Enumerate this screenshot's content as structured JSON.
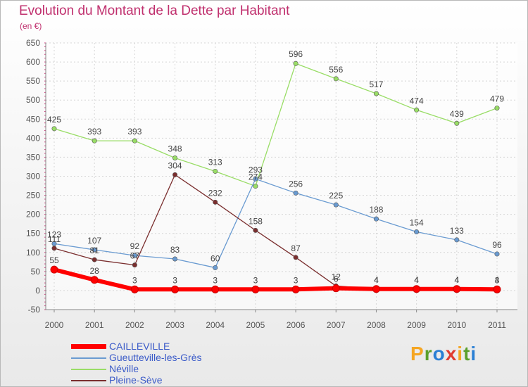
{
  "header": {
    "title": "Evolution du Montant de la Dette par Habitant",
    "unit": "(en €)"
  },
  "brand": {
    "letters": [
      "P",
      "r",
      "o",
      "x",
      "i",
      "t",
      "i"
    ],
    "colors": [
      "#f5a623",
      "#5aa02c",
      "#2a7fd4",
      "#e03c31",
      "#f5a623",
      "#5aa02c",
      "#2a7fd4"
    ]
  },
  "chart_data": {
    "type": "line",
    "title": "Evolution du Montant de la Dette par Habitant",
    "ylabel": "(en €)",
    "xlabel": "",
    "categories": [
      "2000",
      "2001",
      "2002",
      "2003",
      "2004",
      "2005",
      "2006",
      "2007",
      "2008",
      "2009",
      "2010",
      "2011"
    ],
    "ylim": [
      -50,
      650
    ],
    "yticks": [
      -50,
      0,
      50,
      100,
      150,
      200,
      250,
      300,
      350,
      400,
      450,
      500,
      550,
      600,
      650
    ],
    "grid": true,
    "legend_position": "bottom-left",
    "series": [
      {
        "name": "CAILLEVILLE",
        "color": "#ff0000",
        "values": [
          55,
          28,
          3,
          3,
          3,
          3,
          3,
          6,
          4,
          4,
          4,
          3
        ],
        "labels": [
          "55",
          "28",
          "3",
          "3",
          "3",
          "3",
          "3",
          "6",
          "4",
          "4",
          "4",
          "3"
        ]
      },
      {
        "name": "Gueutteville-les-Grès",
        "color": "#6a9bd1",
        "values": [
          123,
          107,
          92,
          83,
          60,
          293,
          256,
          225,
          188,
          154,
          133,
          96
        ],
        "labels": [
          "123",
          "107",
          "92",
          "83",
          "60",
          "293",
          "256",
          "225",
          "188",
          "154",
          "133",
          "96"
        ]
      },
      {
        "name": "Néville",
        "color": "#99dd66",
        "values": [
          425,
          393,
          393,
          348,
          313,
          274,
          596,
          556,
          517,
          474,
          439,
          479
        ],
        "labels": [
          "425",
          "393",
          "393",
          "348",
          "313",
          "274",
          "596",
          "556",
          "517",
          "474",
          "439",
          "479"
        ]
      },
      {
        "name": "Pleine-Sève",
        "color": "#7a2e2e",
        "values": [
          111,
          81,
          67,
          304,
          232,
          158,
          87,
          12,
          4,
          4,
          4,
          4
        ],
        "labels": [
          "111",
          "81",
          "67",
          "304",
          "232",
          "158",
          "87",
          "12",
          "4",
          "4",
          "4",
          "4"
        ]
      }
    ]
  }
}
